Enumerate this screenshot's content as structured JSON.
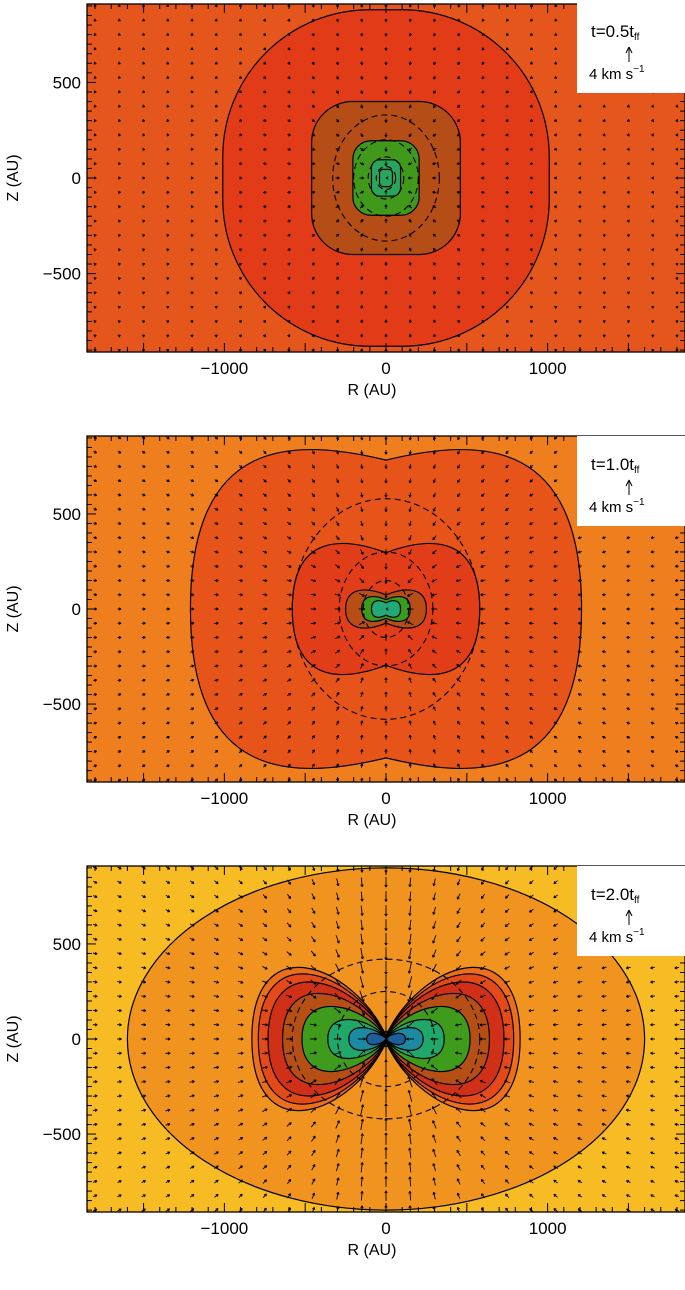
{
  "colors": {
    "p1_bg": "#e4561c",
    "p1_1": "#e23b18",
    "p1_2": "#b54d16",
    "p1_3": "#40991a",
    "p1_4": "#2aa55c",
    "p2_bg": "#ef7f1e",
    "p2_1": "#e6541a",
    "p2_2": "#e23d19",
    "p2_3": "#b84e16",
    "p2_4": "#3a9c1c",
    "p2_5": "#23a87a",
    "p2_6": "#1b70a8",
    "p3_bg": "#f7bb24",
    "p3_1": "#f0941f",
    "p3_2": "#ea6e1c",
    "p3_3": "#e44a19",
    "p3_4": "#d03017",
    "p3_5": "#b54f16",
    "p3_6": "#3f9b1b",
    "p3_7": "#1fa86a",
    "p3_8": "#1c8aa1",
    "p3_9": "#1b5f9b"
  },
  "chart_data": [
    {
      "type": "contour",
      "xlabel": "R (AU)",
      "ylabel": "Z (AU)",
      "xlim": [
        -1850,
        1850
      ],
      "ylim": [
        -910,
        910
      ],
      "xticks": [
        -1000,
        0,
        1000
      ],
      "yticks": [
        -500,
        0,
        500
      ],
      "xtick_labels": [
        "−1000",
        "0",
        "1000"
      ],
      "ytick_labels": [
        "−500",
        "0",
        "500"
      ],
      "time_label": {
        "prefix": "t=0.5t",
        "sub": "ff"
      },
      "velocity_scale": {
        "value": 4,
        "label": "4 km s",
        "sup": "−1"
      },
      "contours_solid": [
        {
          "rx": 1010,
          "ry": 880
        },
        {
          "rx": 460,
          "ry": 400
        },
        {
          "rx": 205,
          "ry": 195
        },
        {
          "rx": 90,
          "ry": 95
        },
        {
          "rx": 40,
          "ry": 45
        }
      ],
      "contours_dashed": [
        {
          "rx": 330,
          "ry": 330
        },
        {
          "rx": 200,
          "ry": 200
        },
        {
          "rx": 110,
          "ry": 110
        },
        {
          "rx": 60,
          "ry": 60
        }
      ],
      "fill_colors": [
        "p1_bg",
        "p1_1",
        "p1_2",
        "p1_3",
        "p1_4"
      ],
      "velocity_field": "infall_weak"
    },
    {
      "type": "contour",
      "xlabel": "R (AU)",
      "ylabel": "Z (AU)",
      "xlim": [
        -1850,
        1850
      ],
      "ylim": [
        -910,
        910
      ],
      "xticks": [
        -1000,
        0,
        1000
      ],
      "yticks": [
        -500,
        0,
        500
      ],
      "xtick_labels": [
        "−1000",
        "0",
        "1000"
      ],
      "ytick_labels": [
        "−500",
        "0",
        "500"
      ],
      "time_label": {
        "prefix": "t=1.0t",
        "sub": "ff"
      },
      "velocity_scale": {
        "value": 4,
        "label": "4 km s",
        "sup": "−1"
      },
      "contours_solid": [
        {
          "rx": 1210,
          "ry": 890
        },
        {
          "rx": 580,
          "ry": 380
        },
        {
          "rx": 250,
          "ry": 115
        },
        {
          "rx": 150,
          "ry": 75
        },
        {
          "rx": 90,
          "ry": 50
        }
      ],
      "contours_dashed": [
        {
          "rx": 580,
          "ry": 580
        },
        {
          "rx": 290,
          "ry": 300
        },
        {
          "rx": 140,
          "ry": 150
        }
      ],
      "fill_colors": [
        "p2_bg",
        "p2_1",
        "p2_2",
        "p2_3",
        "p2_4",
        "p2_5"
      ],
      "velocity_field": "infall_mid"
    },
    {
      "type": "contour",
      "xlabel": "R (AU)",
      "ylabel": "Z (AU)",
      "xlim": [
        -1850,
        1850
      ],
      "ylim": [
        -910,
        910
      ],
      "xticks": [
        -1000,
        0,
        1000
      ],
      "yticks": [
        -500,
        0,
        500
      ],
      "xtick_labels": [
        "−1000",
        "0",
        "1000"
      ],
      "ytick_labels": [
        "−500",
        "0",
        "500"
      ],
      "time_label": {
        "prefix": "t=2.0t",
        "sub": "ff"
      },
      "velocity_scale": {
        "value": 4,
        "label": "4 km s",
        "sup": "−1"
      },
      "contours_solid": [
        {
          "rx": 1600,
          "ry": 900
        },
        {
          "rx": 830,
          "ry": 440
        },
        {
          "rx": 790,
          "ry": 400
        },
        {
          "rx": 730,
          "ry": 350
        },
        {
          "rx": 640,
          "ry": 280
        },
        {
          "rx": 520,
          "ry": 200
        },
        {
          "rx": 360,
          "ry": 120
        },
        {
          "rx": 230,
          "ry": 70
        },
        {
          "rx": 120,
          "ry": 35
        }
      ],
      "contours_dashed": [
        {
          "rx": 580,
          "ry": 420
        },
        {
          "rx": 300,
          "ry": 250
        }
      ],
      "fill_colors": [
        "p3_bg",
        "p3_1",
        "p3_2",
        "p3_3",
        "p3_4",
        "p3_5",
        "p3_6",
        "p3_7",
        "p3_8",
        "p3_9"
      ],
      "velocity_field": "infall_strong"
    }
  ]
}
